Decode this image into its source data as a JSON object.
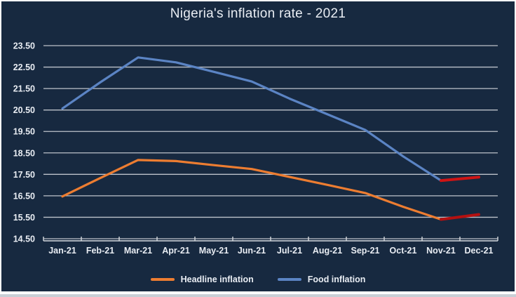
{
  "title": "Nigeria's inflation rate - 2021",
  "colors": {
    "chart_background": "#172940",
    "outer_border": "#ffffff",
    "bottom_strip": "#c9cfd6",
    "gridline": "#c6cbd2",
    "axis_line": "#d7dbe0",
    "text": "#e9edf3",
    "headline_line": "#ED7D31",
    "food_line": "#5B84C4",
    "highlight_red_food": "#D01414",
    "highlight_red_headline": "#B51010"
  },
  "chart_data": {
    "type": "line",
    "title": "Nigeria's inflation rate - 2021",
    "categories": [
      "Jan-21",
      "Feb-21",
      "Mar-21",
      "Apr-21",
      "May-21",
      "Jun-21",
      "Jul-21",
      "Aug-21",
      "Sep-21",
      "Oct-21",
      "Nov-21",
      "Dec-21"
    ],
    "series": [
      {
        "name": "Headline inflation",
        "color": "#ED7D31",
        "values": [
          16.47,
          17.33,
          18.17,
          18.12,
          17.93,
          17.75,
          17.38,
          17.01,
          16.63,
          15.99,
          15.4,
          15.63
        ]
      },
      {
        "name": "Food inflation",
        "color": "#5B84C4",
        "values": [
          20.57,
          21.79,
          22.95,
          22.72,
          22.28,
          21.83,
          21.03,
          20.3,
          19.57,
          18.34,
          17.21,
          17.37
        ]
      }
    ],
    "highlight_segments": [
      {
        "series": "Food inflation",
        "from_index": 10,
        "to_index": 11,
        "color": "#D01414"
      },
      {
        "series": "Headline inflation",
        "from_index": 10,
        "to_index": 11,
        "color": "#B51010"
      }
    ],
    "ylim": [
      14.5,
      23.5
    ],
    "ytick_step": 1.0,
    "ytick_labels": [
      "14.50",
      "15.50",
      "16.50",
      "17.50",
      "18.50",
      "19.50",
      "20.50",
      "21.50",
      "22.50",
      "23.50"
    ],
    "xlabel": "",
    "ylabel": "",
    "grid": true,
    "legend_position": "bottom"
  },
  "legend": {
    "items": [
      {
        "label": "Headline inflation",
        "color": "#ED7D31"
      },
      {
        "label": "Food inflation",
        "color": "#5B84C4"
      }
    ]
  }
}
